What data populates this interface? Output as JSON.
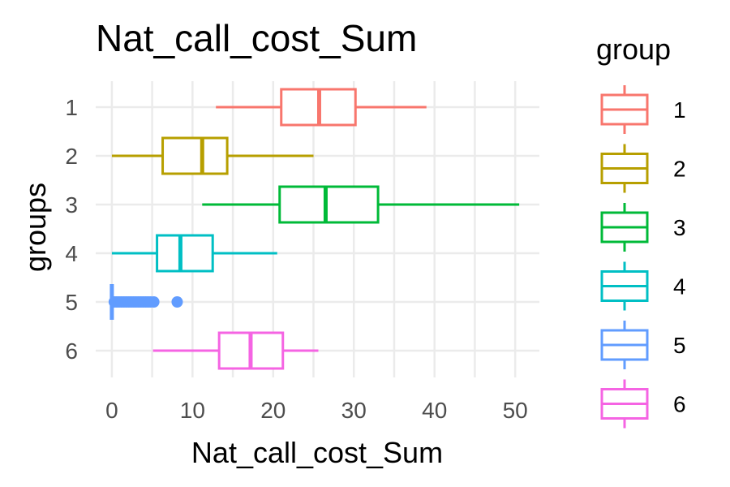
{
  "chart_data": {
    "type": "boxplot",
    "orientation": "horizontal",
    "title": "Nat_call_cost_Sum",
    "xlabel": "Nat_call_cost_Sum",
    "ylabel": "groups",
    "xlim": [
      -2,
      53
    ],
    "xticks": [
      0,
      10,
      20,
      30,
      40,
      50
    ],
    "categories": [
      "1",
      "2",
      "3",
      "4",
      "5",
      "6"
    ],
    "grid": true,
    "legend": {
      "title": "group",
      "position": "right"
    },
    "series": [
      {
        "name": "1",
        "color": "#F8766D",
        "whisker_low": 12.9,
        "q1": 21.0,
        "median": 25.7,
        "q3": 30.2,
        "whisker_high": 39.0,
        "outliers": []
      },
      {
        "name": "2",
        "color": "#B79F00",
        "whisker_low": 0.0,
        "q1": 6.3,
        "median": 11.2,
        "q3": 14.3,
        "whisker_high": 25.0,
        "outliers": []
      },
      {
        "name": "3",
        "color": "#00BA38",
        "whisker_low": 11.2,
        "q1": 20.8,
        "median": 26.5,
        "q3": 33.0,
        "whisker_high": 50.5,
        "outliers": []
      },
      {
        "name": "4",
        "color": "#00BFC4",
        "whisker_low": 0.0,
        "q1": 5.6,
        "median": 8.5,
        "q3": 12.5,
        "whisker_high": 20.5,
        "outliers": []
      },
      {
        "name": "5",
        "color": "#619CFF",
        "whisker_low": 0.0,
        "q1": 0.0,
        "median": 0.0,
        "q3": 0.0,
        "whisker_high": 0.0,
        "outliers": [
          0.3,
          0.6,
          0.9,
          1.2,
          1.5,
          1.8,
          2.1,
          2.4,
          2.7,
          3.0,
          3.3,
          3.6,
          3.9,
          4.2,
          4.5,
          4.8,
          5.2,
          8.1
        ]
      },
      {
        "name": "6",
        "color": "#F564E3",
        "whisker_low": 5.1,
        "q1": 13.3,
        "median": 17.2,
        "q3": 21.2,
        "whisker_high": 25.6,
        "outliers": []
      }
    ]
  }
}
